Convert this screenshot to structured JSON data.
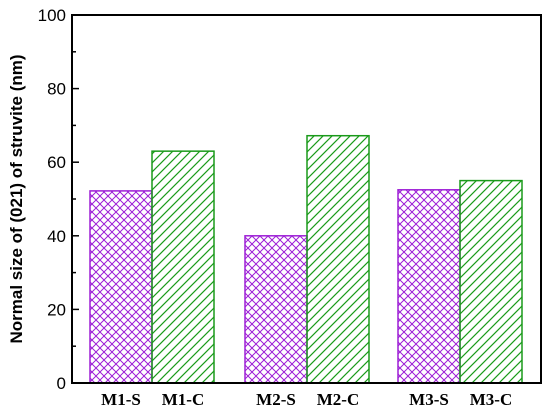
{
  "chart_data": {
    "type": "bar",
    "categories": [
      "M1-S",
      "M1-C",
      "M2-S",
      "M2-C",
      "M3-S",
      "M3-C"
    ],
    "values": [
      52.2,
      63.0,
      40.0,
      67.2,
      52.5,
      55.0
    ],
    "ylabel": "Normal size of (021) of struvite (nm)",
    "xlabel": "",
    "ylim": [
      0,
      100
    ],
    "yticks": [
      0,
      20,
      40,
      60,
      80,
      100
    ],
    "grid": false,
    "series_styles": [
      {
        "pattern": "crosshatch",
        "color": "#9d1fd6"
      },
      {
        "pattern": "diagonal",
        "color": "#1a9a1a"
      }
    ]
  }
}
